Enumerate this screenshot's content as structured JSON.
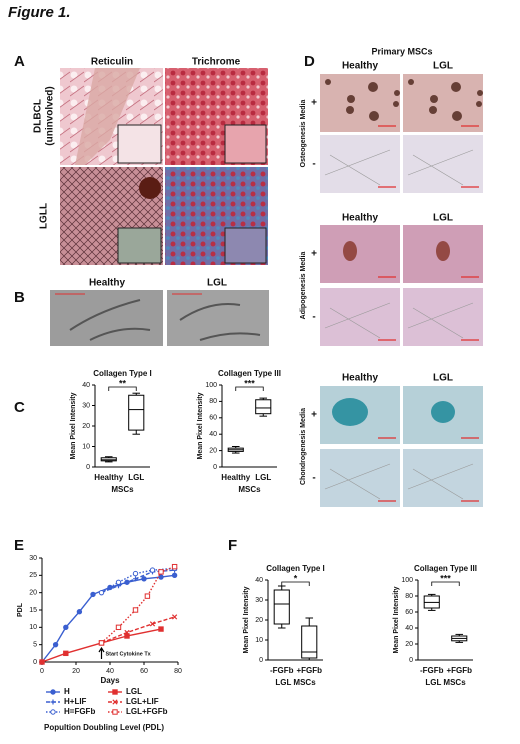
{
  "title": "Figure 1.",
  "panel_a": {
    "label": "A",
    "columns": [
      "Reticulin",
      "Trichrome"
    ],
    "rows": [
      {
        "label": "DLBCL",
        "sublabel": "(uninvolved)"
      },
      {
        "label": "LGLL"
      }
    ]
  },
  "panel_b": {
    "label": "B",
    "columns": [
      "Healthy",
      "LGL"
    ]
  },
  "panel_c": {
    "label": "C"
  },
  "panel_d": {
    "label": "D",
    "title": "Primary MSCs",
    "sections": [
      {
        "columns": [
          "Healthy",
          "LGL"
        ],
        "media": "Osteogenesis Media",
        "rows": [
          "+",
          "-"
        ]
      },
      {
        "columns": [
          "Healthy",
          "LGL"
        ],
        "media": "Adipogenesis Media",
        "rows": [
          "+",
          "-"
        ]
      },
      {
        "columns": [
          "Healthy",
          "LGL"
        ],
        "media": "Chondrogenesis Media",
        "rows": [
          "+",
          "-"
        ]
      }
    ]
  },
  "panel_e": {
    "label": "E"
  },
  "panel_f": {
    "label": "F"
  },
  "chart_data": [
    {
      "type": "box",
      "title": "Collagen Type I",
      "y_label": "Mean Pixel Intensity",
      "x_label": "MSCs",
      "categories": [
        "Healthy",
        "LGL"
      ],
      "boxes": [
        {
          "min": 2.5,
          "q1": 3,
          "median": 3.5,
          "q3": 4.5,
          "max": 5
        },
        {
          "min": 16,
          "q1": 18,
          "median": 28,
          "q3": 35,
          "max": 36
        }
      ],
      "significance": "**",
      "ylim": [
        0,
        40
      ],
      "yticks": [
        0,
        10,
        20,
        30,
        40
      ]
    },
    {
      "type": "box",
      "title": "Collagen Type III",
      "y_label": "Mean Pixel Intensity",
      "x_label": "MSCs",
      "categories": [
        "Healthy",
        "LGL"
      ],
      "boxes": [
        {
          "min": 17,
          "q1": 19,
          "median": 21,
          "q3": 23,
          "max": 25
        },
        {
          "min": 62,
          "q1": 65,
          "median": 72,
          "q3": 82,
          "max": 84
        }
      ],
      "significance": "***",
      "ylim": [
        0,
        100
      ],
      "yticks": [
        0,
        20,
        40,
        60,
        80,
        100
      ]
    },
    {
      "type": "line",
      "x_label": "Days",
      "y_label": "PDL",
      "annotation": "Start Cytokine Tx",
      "caption": "Popultion Doubling Level (PDL)",
      "legend": "bottom",
      "xlim": [
        0,
        80
      ],
      "xticks": [
        0,
        20,
        40,
        60,
        80
      ],
      "ylim": [
        0,
        30
      ],
      "yticks": [
        0,
        5,
        10,
        15,
        20,
        25,
        30
      ],
      "series": [
        {
          "name": "H",
          "color": "#3a5fd0",
          "line_style": "solid",
          "marker": "circle",
          "x": [
            0,
            8,
            14,
            22,
            30,
            40,
            50,
            60,
            70,
            78
          ],
          "values": [
            0,
            5,
            10,
            14.5,
            19.5,
            21.5,
            23,
            24,
            24.5,
            25
          ]
        },
        {
          "name": "H+LIF",
          "color": "#3a5fd0",
          "line_style": "dashed",
          "marker": "plus",
          "x": [
            35,
            45,
            55,
            65,
            78
          ],
          "values": [
            20,
            22,
            24,
            26,
            26.5
          ]
        },
        {
          "name": "H=FGFb",
          "color": "#3a5fd0",
          "line_style": "dotted",
          "marker": "open-circle",
          "x": [
            35,
            45,
            55,
            65,
            78
          ],
          "values": [
            20,
            23,
            25.5,
            26.5,
            27
          ]
        },
        {
          "name": "LGL",
          "color": "#e03030",
          "line_style": "solid",
          "marker": "square",
          "x": [
            0,
            14,
            35,
            50,
            70
          ],
          "values": [
            0,
            2.5,
            5.5,
            7.5,
            9.5
          ]
        },
        {
          "name": "LGL+LIF",
          "color": "#e03030",
          "line_style": "dashed",
          "marker": "cross",
          "x": [
            35,
            50,
            65,
            78
          ],
          "values": [
            5.5,
            8.5,
            11,
            13
          ]
        },
        {
          "name": "LGL+FGFb",
          "color": "#e03030",
          "line_style": "dotted",
          "marker": "open-square",
          "x": [
            35,
            45,
            55,
            62,
            70,
            78
          ],
          "values": [
            5.5,
            10,
            15,
            19,
            26,
            27.5
          ]
        }
      ]
    },
    {
      "type": "box",
      "title": "Collagen Type I",
      "y_label": "Mean Pixel Intensity",
      "x_label": "LGL MSCs",
      "categories": [
        "-FGFb",
        "+FGFb"
      ],
      "boxes": [
        {
          "min": 16,
          "q1": 18,
          "median": 28,
          "q3": 35,
          "max": 37
        },
        {
          "min": 0,
          "q1": 1,
          "median": 4,
          "q3": 17,
          "max": 21
        }
      ],
      "significance": "*",
      "ylim": [
        0,
        40
      ],
      "yticks": [
        0,
        10,
        20,
        30,
        40
      ]
    },
    {
      "type": "box",
      "title": "Collagen Type III",
      "y_label": "Mean Pixel Intensity",
      "x_label": "LGL MSCs",
      "categories": [
        "-FGFb",
        "+FGFb"
      ],
      "boxes": [
        {
          "min": 62,
          "q1": 65,
          "median": 72,
          "q3": 80,
          "max": 82
        },
        {
          "min": 22,
          "q1": 24,
          "median": 27,
          "q3": 30,
          "max": 32
        }
      ],
      "significance": "***",
      "ylim": [
        0,
        100
      ],
      "yticks": [
        0,
        20,
        40,
        60,
        80,
        100
      ]
    }
  ]
}
